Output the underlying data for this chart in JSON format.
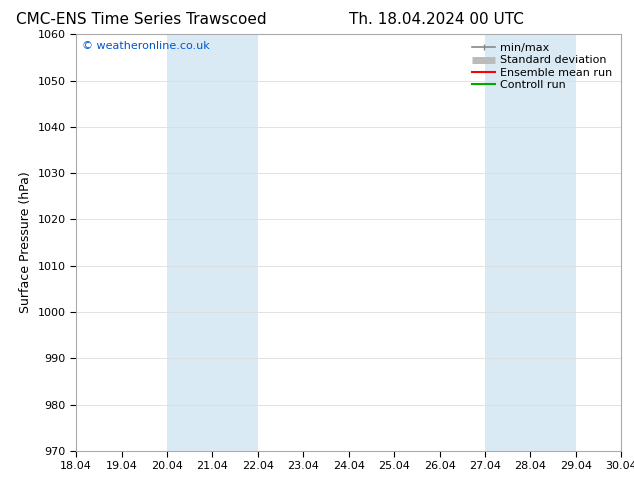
{
  "title_left": "CMC-ENS Time Series Trawscoed",
  "title_right": "Th. 18.04.2024 00 UTC",
  "ylabel": "Surface Pressure (hPa)",
  "ylim": [
    970,
    1060
  ],
  "yticks": [
    970,
    980,
    990,
    1000,
    1010,
    1020,
    1030,
    1040,
    1050,
    1060
  ],
  "xlim_start": 0,
  "xlim_end": 12,
  "xtick_labels": [
    "18.04",
    "19.04",
    "20.04",
    "21.04",
    "22.04",
    "23.04",
    "24.04",
    "25.04",
    "26.04",
    "27.04",
    "28.04",
    "29.04",
    "30.04"
  ],
  "xtick_positions": [
    0,
    1,
    2,
    3,
    4,
    5,
    6,
    7,
    8,
    9,
    10,
    11,
    12
  ],
  "shaded_bands": [
    {
      "xmin": 2.0,
      "xmax": 2.5
    },
    {
      "xmin": 2.5,
      "xmax": 4.0
    },
    {
      "xmin": 9.0,
      "xmax": 9.5
    },
    {
      "xmin": 9.5,
      "xmax": 11.0
    }
  ],
  "band_color": "#daeaf5",
  "watermark_text": "© weatheronline.co.uk",
  "watermark_color": "#0055cc",
  "legend_items": [
    {
      "label": "min/max",
      "color": "#888888",
      "lw": 1.2
    },
    {
      "label": "Standard deviation",
      "color": "#bbbbbb",
      "lw": 5
    },
    {
      "label": "Ensemble mean run",
      "color": "#ff0000",
      "lw": 1.5
    },
    {
      "label": "Controll run",
      "color": "#00aa00",
      "lw": 1.5
    }
  ],
  "bg_color": "#ffffff",
  "grid_color": "#dddddd",
  "title_fontsize": 11,
  "ylabel_fontsize": 9,
  "tick_fontsize": 8,
  "legend_fontsize": 8,
  "watermark_fontsize": 8
}
